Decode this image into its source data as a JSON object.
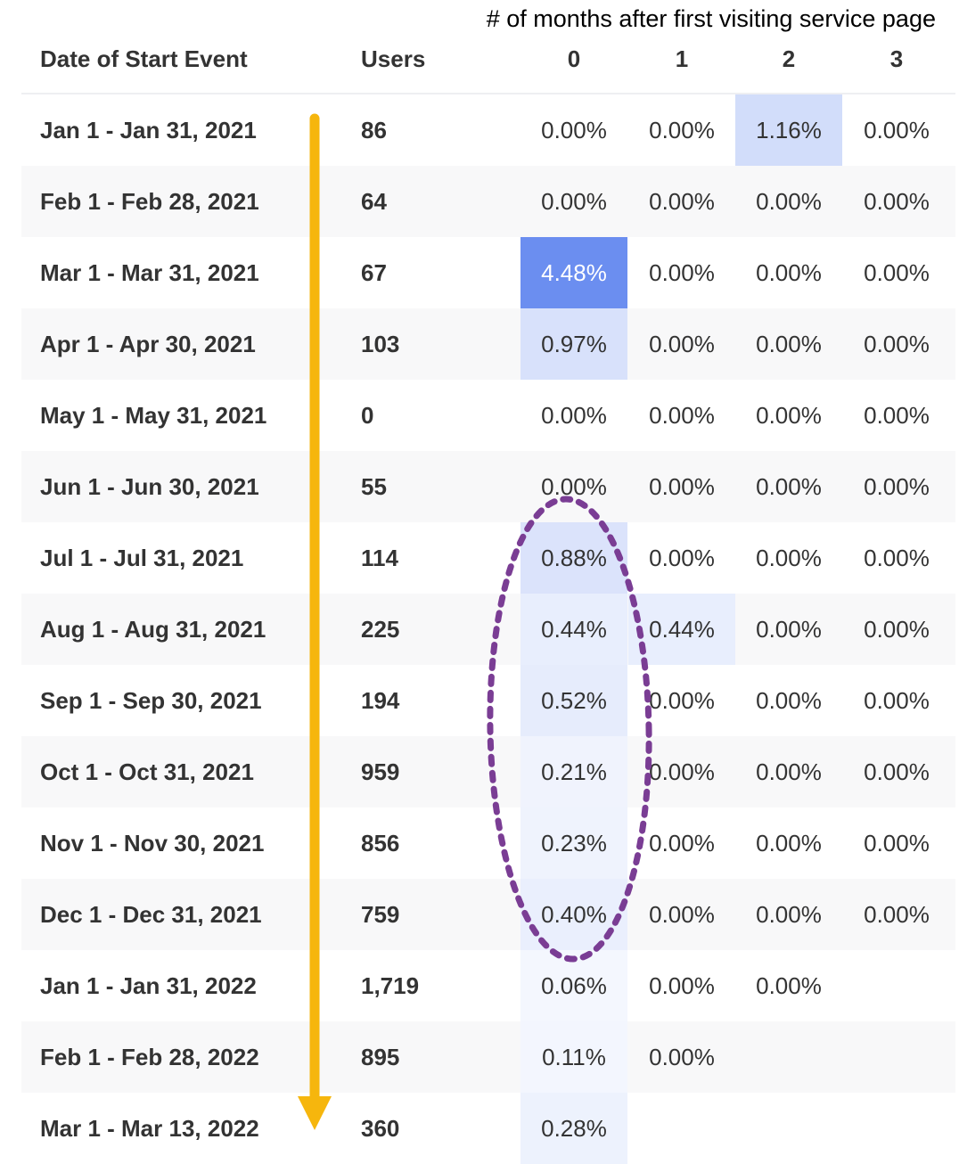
{
  "chart_data": {
    "type": "table",
    "title": "# of months after first visiting service page",
    "columns": [
      "Date of Start Event",
      "Users",
      "0",
      "1",
      "2",
      "3"
    ],
    "month_columns": [
      "0",
      "1",
      "2",
      "3"
    ],
    "rows": [
      {
        "date": "Jan 1 - Jan 31, 2021",
        "users": "86",
        "values": [
          "0.00%",
          "0.00%",
          "1.16%",
          "0.00%"
        ]
      },
      {
        "date": "Feb 1 - Feb 28, 2021",
        "users": "64",
        "values": [
          "0.00%",
          "0.00%",
          "0.00%",
          "0.00%"
        ]
      },
      {
        "date": "Mar 1 - Mar 31, 2021",
        "users": "67",
        "values": [
          "4.48%",
          "0.00%",
          "0.00%",
          "0.00%"
        ]
      },
      {
        "date": "Apr 1 - Apr 30, 2021",
        "users": "103",
        "values": [
          "0.97%",
          "0.00%",
          "0.00%",
          "0.00%"
        ]
      },
      {
        "date": "May 1 - May 31, 2021",
        "users": "0",
        "values": [
          "0.00%",
          "0.00%",
          "0.00%",
          "0.00%"
        ]
      },
      {
        "date": "Jun 1 - Jun 30, 2021",
        "users": "55",
        "values": [
          "0.00%",
          "0.00%",
          "0.00%",
          "0.00%"
        ]
      },
      {
        "date": "Jul 1 - Jul 31, 2021",
        "users": "114",
        "values": [
          "0.88%",
          "0.00%",
          "0.00%",
          "0.00%"
        ]
      },
      {
        "date": "Aug 1 - Aug 31, 2021",
        "users": "225",
        "values": [
          "0.44%",
          "0.44%",
          "0.00%",
          "0.00%"
        ]
      },
      {
        "date": "Sep 1 - Sep 30, 2021",
        "users": "194",
        "values": [
          "0.52%",
          "0.00%",
          "0.00%",
          "0.00%"
        ]
      },
      {
        "date": "Oct 1 - Oct 31, 2021",
        "users": "959",
        "values": [
          "0.21%",
          "0.00%",
          "0.00%",
          "0.00%"
        ]
      },
      {
        "date": "Nov 1 - Nov 30, 2021",
        "users": "856",
        "values": [
          "0.23%",
          "0.00%",
          "0.00%",
          "0.00%"
        ]
      },
      {
        "date": "Dec 1 - Dec 31, 2021",
        "users": "759",
        "values": [
          "0.40%",
          "0.00%",
          "0.00%",
          "0.00%"
        ]
      },
      {
        "date": "Jan 1 - Jan 31, 2022",
        "users": "1,719",
        "values": [
          "0.06%",
          "0.00%",
          "0.00%"
        ]
      },
      {
        "date": "Feb 1 - Feb 28, 2022",
        "users": "895",
        "values": [
          "0.11%",
          "0.00%"
        ]
      },
      {
        "date": "Mar 1 - Mar 13, 2022",
        "users": "360",
        "values": [
          "0.28%"
        ]
      }
    ],
    "heat_color": "#6b8ef0",
    "max_value": 4.48
  },
  "annotations": {
    "arrow_color": "#f6b60d",
    "ellipse_color": "#7a3d94"
  }
}
